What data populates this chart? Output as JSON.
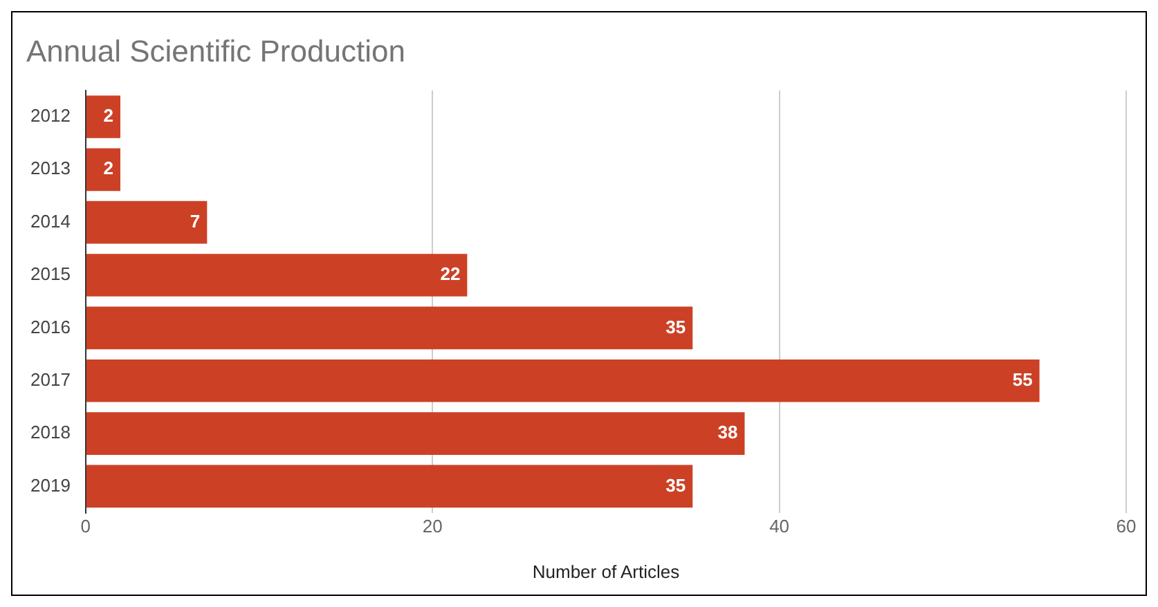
{
  "chart_data": {
    "type": "bar",
    "orientation": "horizontal",
    "title": "Annual Scientific Production",
    "xlabel": "Number of Articles",
    "categories": [
      "2012",
      "2013",
      "2014",
      "2015",
      "2016",
      "2017",
      "2018",
      "2019"
    ],
    "values": [
      2,
      2,
      7,
      22,
      35,
      55,
      38,
      35
    ],
    "color": "#cc4125",
    "xlim": [
      0,
      60
    ],
    "xticks": [
      0,
      20,
      40,
      60
    ],
    "grid": "x",
    "legend": false,
    "data_labels": true
  }
}
